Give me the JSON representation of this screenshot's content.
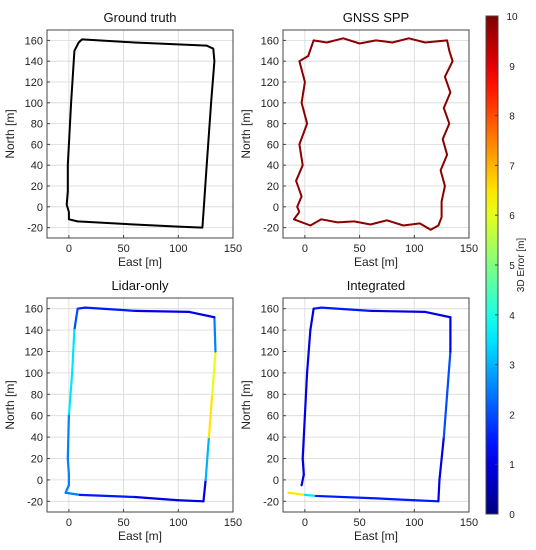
{
  "colors": {
    "ground_truth": "#000000",
    "gnss": "#8b0000",
    "grid": "#d8d8d8",
    "frame": "#444444"
  },
  "colorbar": {
    "label": "3D Error [m]",
    "min": 0,
    "max": 10,
    "ticks": [
      0,
      1,
      2,
      3,
      4,
      5,
      6,
      7,
      8,
      9,
      10
    ],
    "colormap": "jet"
  },
  "chart_data": [
    {
      "type": "line",
      "title": "Ground truth",
      "xlabel": "East [m]",
      "ylabel": "North [m]",
      "xlim": [
        -20,
        150
      ],
      "ylim": [
        -30,
        170
      ],
      "xticks": [
        0,
        50,
        100,
        150
      ],
      "yticks": [
        -20,
        0,
        20,
        40,
        60,
        80,
        100,
        120,
        140,
        160
      ],
      "grid": true,
      "series": [
        {
          "color": "#000000",
          "points": [
            [
              0,
              -5
            ],
            [
              0,
              -12
            ],
            [
              8,
              -14
            ],
            [
              60,
              -17
            ],
            [
              100,
              -19
            ],
            [
              122,
              -20
            ],
            [
              123,
              -5
            ],
            [
              126,
              40
            ],
            [
              130,
              100
            ],
            [
              133,
              140
            ],
            [
              132,
              152
            ],
            [
              126,
              155
            ],
            [
              60,
              158
            ],
            [
              12,
              161
            ],
            [
              9,
              158
            ],
            [
              5,
              150
            ],
            [
              2,
              100
            ],
            [
              -1,
              40
            ],
            [
              -1,
              15
            ],
            [
              -2,
              2
            ],
            [
              0,
              -5
            ]
          ]
        }
      ]
    },
    {
      "type": "line",
      "title": "GNSS SPP",
      "xlabel": "East [m]",
      "ylabel": "North [m]",
      "xlim": [
        -20,
        150
      ],
      "ylim": [
        -30,
        170
      ],
      "xticks": [
        0,
        50,
        100,
        150
      ],
      "yticks": [
        -20,
        0,
        20,
        40,
        60,
        80,
        100,
        120,
        140,
        160
      ],
      "grid": true,
      "series": [
        {
          "color": "#8b0000",
          "points": [
            [
              -5,
              -5
            ],
            [
              -10,
              -12
            ],
            [
              5,
              -18
            ],
            [
              15,
              -12
            ],
            [
              30,
              -15
            ],
            [
              45,
              -14
            ],
            [
              60,
              -17
            ],
            [
              75,
              -13
            ],
            [
              90,
              -18
            ],
            [
              105,
              -16
            ],
            [
              115,
              -22
            ],
            [
              122,
              -18
            ],
            [
              125,
              -10
            ],
            [
              125,
              5
            ],
            [
              128,
              20
            ],
            [
              124,
              35
            ],
            [
              130,
              50
            ],
            [
              126,
              65
            ],
            [
              132,
              80
            ],
            [
              127,
              95
            ],
            [
              133,
              110
            ],
            [
              128,
              125
            ],
            [
              135,
              140
            ],
            [
              132,
              150
            ],
            [
              130,
              160
            ],
            [
              110,
              158
            ],
            [
              95,
              162
            ],
            [
              80,
              158
            ],
            [
              65,
              160
            ],
            [
              50,
              157
            ],
            [
              35,
              162
            ],
            [
              20,
              158
            ],
            [
              8,
              160
            ],
            [
              3,
              145
            ],
            [
              -5,
              140
            ],
            [
              0,
              120
            ],
            [
              -3,
              100
            ],
            [
              2,
              80
            ],
            [
              -5,
              60
            ],
            [
              -2,
              40
            ],
            [
              -8,
              25
            ],
            [
              -3,
              10
            ],
            [
              -7,
              0
            ],
            [
              -5,
              -5
            ]
          ]
        }
      ]
    },
    {
      "type": "line",
      "title": "Lidar-only",
      "xlabel": "East [m]",
      "ylabel": "North [m]",
      "xlim": [
        -20,
        150
      ],
      "ylim": [
        -30,
        170
      ],
      "xticks": [
        0,
        50,
        100,
        150
      ],
      "yticks": [
        -20,
        0,
        20,
        40,
        60,
        80,
        100,
        120,
        140,
        160
      ],
      "grid": true,
      "colorbar_units": "3D Error [m]",
      "series": [
        {
          "error_colored": true,
          "points": [
            [
              0,
              -5
            ],
            [
              -3,
              -12
            ],
            [
              10,
              -14
            ],
            [
              60,
              -16
            ],
            [
              100,
              -19
            ],
            [
              123,
              -20
            ],
            [
              125,
              0
            ],
            [
              128,
              40
            ],
            [
              131,
              80
            ],
            [
              134,
              120
            ],
            [
              133,
              152
            ],
            [
              110,
              157
            ],
            [
              60,
              158
            ],
            [
              15,
              161
            ],
            [
              8,
              160
            ],
            [
              5,
              140
            ],
            [
              3,
              100
            ],
            [
              0,
              60
            ],
            [
              -1,
              20
            ],
            [
              0,
              5
            ],
            [
              0,
              -5
            ]
          ],
          "errors": [
            2,
            3,
            2,
            1,
            1,
            1,
            1,
            5,
            8,
            4,
            1,
            1,
            1,
            2,
            1,
            3,
            4,
            3,
            2,
            3,
            2
          ]
        }
      ]
    },
    {
      "type": "line",
      "title": "Integrated",
      "xlabel": "East [m]",
      "ylabel": "North [m]",
      "xlim": [
        -20,
        150
      ],
      "ylim": [
        -30,
        170
      ],
      "xticks": [
        0,
        50,
        100,
        150
      ],
      "yticks": [
        -20,
        0,
        20,
        40,
        60,
        80,
        100,
        120,
        140,
        160
      ],
      "grid": true,
      "colorbar_units": "3D Error [m]",
      "series": [
        {
          "error_colored": true,
          "points": [
            [
              -15,
              -12
            ],
            [
              0,
              -14
            ],
            [
              10,
              -15
            ],
            [
              60,
              -17
            ],
            [
              100,
              -19
            ],
            [
              122,
              -20
            ],
            [
              123,
              0
            ],
            [
              127,
              40
            ],
            [
              130,
              80
            ],
            [
              133,
              120
            ],
            [
              133,
              152
            ],
            [
              110,
              157
            ],
            [
              60,
              158
            ],
            [
              15,
              161
            ],
            [
              8,
              160
            ],
            [
              5,
              140
            ],
            [
              2,
              100
            ],
            [
              0,
              60
            ],
            [
              -2,
              20
            ],
            [
              -1,
              5
            ],
            [
              -3,
              -5
            ]
          ],
          "errors": [
            8,
            5,
            2,
            1,
            2,
            1,
            1,
            1,
            3,
            1,
            1,
            1,
            1,
            2,
            1,
            1,
            1,
            1,
            1,
            1,
            1
          ]
        }
      ]
    }
  ]
}
